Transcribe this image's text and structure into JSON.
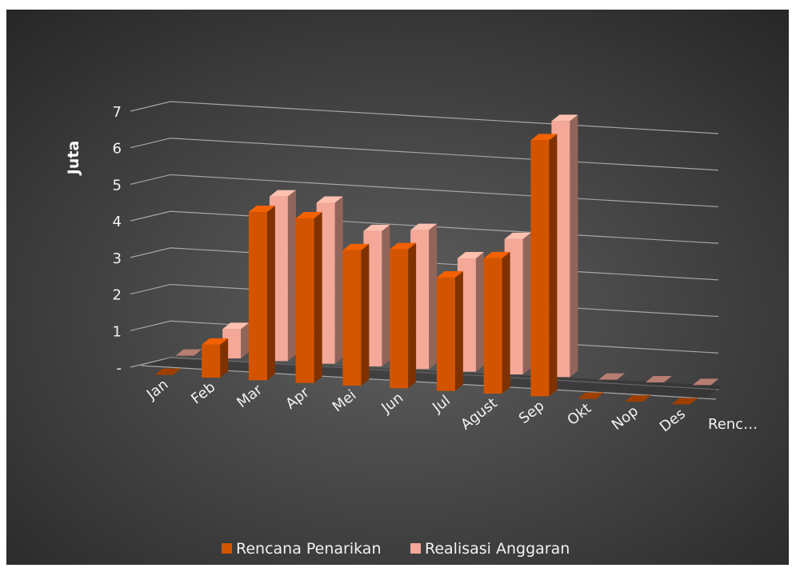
{
  "chart_data": {
    "type": "bar",
    "style": "3d-clustered-column",
    "categories": [
      "Jan",
      "Feb",
      "Mar",
      "Apr",
      "Mei",
      "Jun",
      "Jul",
      "Agust",
      "Sep",
      "Okt",
      "Nop",
      "Des"
    ],
    "series": [
      {
        "name": "Rencana Penarikan",
        "values": [
          0,
          0.9,
          4.6,
          4.5,
          3.7,
          3.8,
          3.1,
          3.7,
          7.0,
          0,
          0,
          0
        ],
        "color": "#D35400"
      },
      {
        "name": "Realisasi Anggaran",
        "values": [
          0,
          0.8,
          4.5,
          4.4,
          3.7,
          3.8,
          3.1,
          3.7,
          7.0,
          0,
          0,
          0
        ],
        "color": "#F4A898"
      }
    ],
    "ylabel": "Juta",
    "yticks": [
      "-",
      "1",
      "2",
      "3",
      "4",
      "5",
      "6",
      "7"
    ],
    "ylim": [
      0,
      7
    ],
    "depth_axis_label": "Renc…",
    "grid": true,
    "legend_position": "bottom"
  },
  "colors": {
    "background_light": "#5f5f5f",
    "background_dark": "#262626",
    "gridline": "#a6a6a6"
  }
}
